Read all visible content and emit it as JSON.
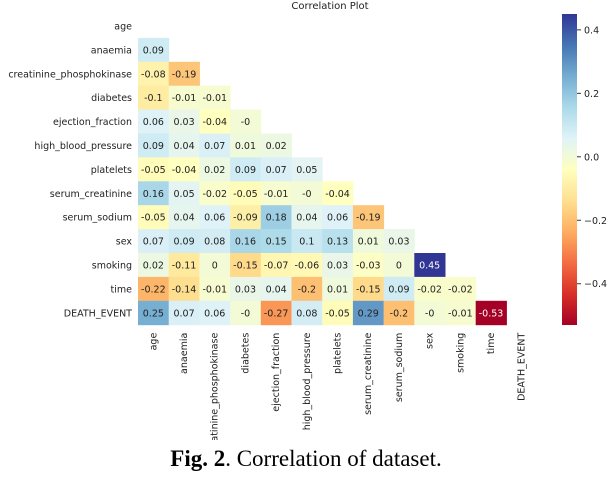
{
  "chart_data": {
    "type": "heatmap",
    "title": "Correlation Plot",
    "labels": [
      "age",
      "anaemia",
      "creatinine_phosphokinase",
      "diabetes",
      "ejection_fraction",
      "high_blood_pressure",
      "platelets",
      "serum_creatinine",
      "serum_sodium",
      "sex",
      "smoking",
      "time",
      "DEATH_EVENT"
    ],
    "lower_triangle": [
      [],
      [
        "0.09"
      ],
      [
        "-0.08",
        "-0.19"
      ],
      [
        "-0.1",
        "-0.01",
        "-0.01"
      ],
      [
        "0.06",
        "0.03",
        "-0.04",
        "-0"
      ],
      [
        "0.09",
        "0.04",
        "0.07",
        "0.01",
        "0.02"
      ],
      [
        "-0.05",
        "-0.04",
        "0.02",
        "0.09",
        "0.07",
        "0.05"
      ],
      [
        "0.16",
        "0.05",
        "-0.02",
        "-0.05",
        "-0.01",
        "-0",
        "-0.04"
      ],
      [
        "-0.05",
        "0.04",
        "0.06",
        "-0.09",
        "0.18",
        "0.04",
        "0.06",
        "-0.19"
      ],
      [
        "0.07",
        "0.09",
        "0.08",
        "0.16",
        "0.15",
        "0.1",
        "0.13",
        "0.01",
        "0.03"
      ],
      [
        "0.02",
        "-0.11",
        "0",
        "-0.15",
        "-0.07",
        "-0.06",
        "0.03",
        "-0.03",
        "0",
        "0.45"
      ],
      [
        "-0.22",
        "-0.14",
        "-0.01",
        "0.03",
        "0.04",
        "-0.2",
        "0.01",
        "-0.15",
        "0.09",
        "-0.02",
        "-0.02"
      ],
      [
        "0.25",
        "0.07",
        "0.06",
        "-0",
        "-0.27",
        "0.08",
        "-0.05",
        "0.29",
        "-0.2",
        "-0",
        "-0.01",
        "-0.53"
      ]
    ],
    "colorbar": {
      "ticks": [
        "0.4",
        "0.2",
        "0.0",
        "−0.2",
        "−0.4"
      ],
      "tick_values": [
        0.4,
        0.2,
        0,
        -0.2,
        -0.4
      ],
      "range": [
        -0.53,
        0.45
      ],
      "colormap": "RdYlBu"
    }
  },
  "caption": {
    "label": "Fig. 2",
    "text": ".  Correlation of dataset."
  }
}
